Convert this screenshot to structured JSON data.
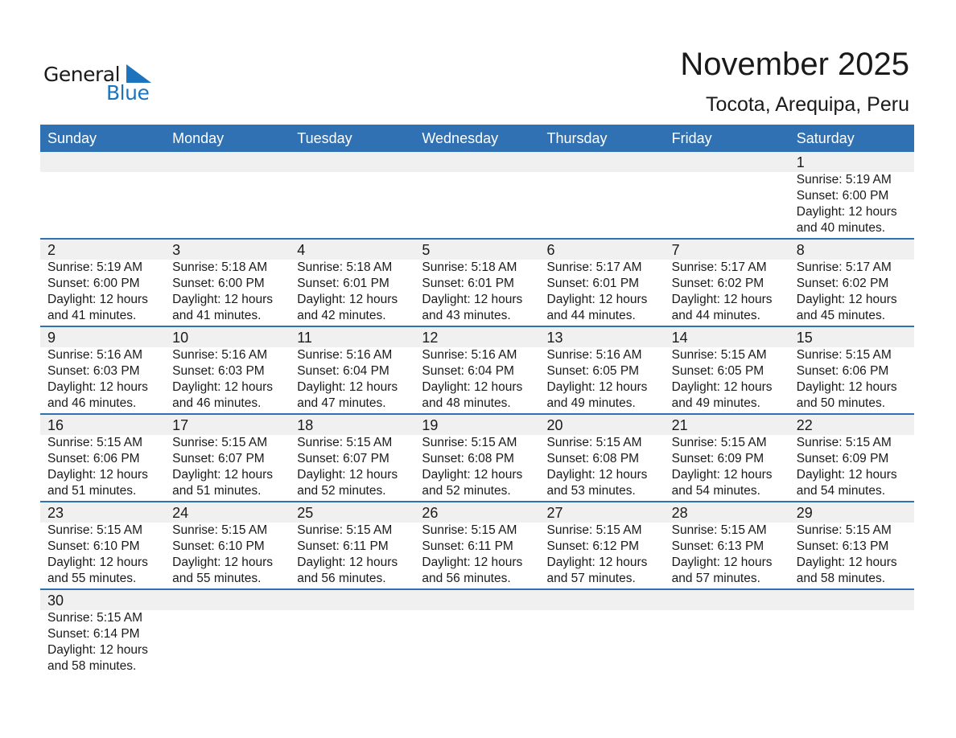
{
  "logo": {
    "line1": "General",
    "line2": "Blue",
    "accent": "#1c75bc"
  },
  "title": "November 2025",
  "subtitle": "Tocota, Arequipa, Peru",
  "header_color": "#2f71b2",
  "weekdays": [
    "Sunday",
    "Monday",
    "Tuesday",
    "Wednesday",
    "Thursday",
    "Friday",
    "Saturday"
  ],
  "weeks": [
    [
      null,
      null,
      null,
      null,
      null,
      null,
      {
        "day": "1",
        "sunrise": "Sunrise: 5:19 AM",
        "sunset": "Sunset: 6:00 PM",
        "daylight": "Daylight: 12 hours",
        "minutes": "and 40 minutes."
      }
    ],
    [
      {
        "day": "2",
        "sunrise": "Sunrise: 5:19 AM",
        "sunset": "Sunset: 6:00 PM",
        "daylight": "Daylight: 12 hours",
        "minutes": "and 41 minutes."
      },
      {
        "day": "3",
        "sunrise": "Sunrise: 5:18 AM",
        "sunset": "Sunset: 6:00 PM",
        "daylight": "Daylight: 12 hours",
        "minutes": "and 41 minutes."
      },
      {
        "day": "4",
        "sunrise": "Sunrise: 5:18 AM",
        "sunset": "Sunset: 6:01 PM",
        "daylight": "Daylight: 12 hours",
        "minutes": "and 42 minutes."
      },
      {
        "day": "5",
        "sunrise": "Sunrise: 5:18 AM",
        "sunset": "Sunset: 6:01 PM",
        "daylight": "Daylight: 12 hours",
        "minutes": "and 43 minutes."
      },
      {
        "day": "6",
        "sunrise": "Sunrise: 5:17 AM",
        "sunset": "Sunset: 6:01 PM",
        "daylight": "Daylight: 12 hours",
        "minutes": "and 44 minutes."
      },
      {
        "day": "7",
        "sunrise": "Sunrise: 5:17 AM",
        "sunset": "Sunset: 6:02 PM",
        "daylight": "Daylight: 12 hours",
        "minutes": "and 44 minutes."
      },
      {
        "day": "8",
        "sunrise": "Sunrise: 5:17 AM",
        "sunset": "Sunset: 6:02 PM",
        "daylight": "Daylight: 12 hours",
        "minutes": "and 45 minutes."
      }
    ],
    [
      {
        "day": "9",
        "sunrise": "Sunrise: 5:16 AM",
        "sunset": "Sunset: 6:03 PM",
        "daylight": "Daylight: 12 hours",
        "minutes": "and 46 minutes."
      },
      {
        "day": "10",
        "sunrise": "Sunrise: 5:16 AM",
        "sunset": "Sunset: 6:03 PM",
        "daylight": "Daylight: 12 hours",
        "minutes": "and 46 minutes."
      },
      {
        "day": "11",
        "sunrise": "Sunrise: 5:16 AM",
        "sunset": "Sunset: 6:04 PM",
        "daylight": "Daylight: 12 hours",
        "minutes": "and 47 minutes."
      },
      {
        "day": "12",
        "sunrise": "Sunrise: 5:16 AM",
        "sunset": "Sunset: 6:04 PM",
        "daylight": "Daylight: 12 hours",
        "minutes": "and 48 minutes."
      },
      {
        "day": "13",
        "sunrise": "Sunrise: 5:16 AM",
        "sunset": "Sunset: 6:05 PM",
        "daylight": "Daylight: 12 hours",
        "minutes": "and 49 minutes."
      },
      {
        "day": "14",
        "sunrise": "Sunrise: 5:15 AM",
        "sunset": "Sunset: 6:05 PM",
        "daylight": "Daylight: 12 hours",
        "minutes": "and 49 minutes."
      },
      {
        "day": "15",
        "sunrise": "Sunrise: 5:15 AM",
        "sunset": "Sunset: 6:06 PM",
        "daylight": "Daylight: 12 hours",
        "minutes": "and 50 minutes."
      }
    ],
    [
      {
        "day": "16",
        "sunrise": "Sunrise: 5:15 AM",
        "sunset": "Sunset: 6:06 PM",
        "daylight": "Daylight: 12 hours",
        "minutes": "and 51 minutes."
      },
      {
        "day": "17",
        "sunrise": "Sunrise: 5:15 AM",
        "sunset": "Sunset: 6:07 PM",
        "daylight": "Daylight: 12 hours",
        "minutes": "and 51 minutes."
      },
      {
        "day": "18",
        "sunrise": "Sunrise: 5:15 AM",
        "sunset": "Sunset: 6:07 PM",
        "daylight": "Daylight: 12 hours",
        "minutes": "and 52 minutes."
      },
      {
        "day": "19",
        "sunrise": "Sunrise: 5:15 AM",
        "sunset": "Sunset: 6:08 PM",
        "daylight": "Daylight: 12 hours",
        "minutes": "and 52 minutes."
      },
      {
        "day": "20",
        "sunrise": "Sunrise: 5:15 AM",
        "sunset": "Sunset: 6:08 PM",
        "daylight": "Daylight: 12 hours",
        "minutes": "and 53 minutes."
      },
      {
        "day": "21",
        "sunrise": "Sunrise: 5:15 AM",
        "sunset": "Sunset: 6:09 PM",
        "daylight": "Daylight: 12 hours",
        "minutes": "and 54 minutes."
      },
      {
        "day": "22",
        "sunrise": "Sunrise: 5:15 AM",
        "sunset": "Sunset: 6:09 PM",
        "daylight": "Daylight: 12 hours",
        "minutes": "and 54 minutes."
      }
    ],
    [
      {
        "day": "23",
        "sunrise": "Sunrise: 5:15 AM",
        "sunset": "Sunset: 6:10 PM",
        "daylight": "Daylight: 12 hours",
        "minutes": "and 55 minutes."
      },
      {
        "day": "24",
        "sunrise": "Sunrise: 5:15 AM",
        "sunset": "Sunset: 6:10 PM",
        "daylight": "Daylight: 12 hours",
        "minutes": "and 55 minutes."
      },
      {
        "day": "25",
        "sunrise": "Sunrise: 5:15 AM",
        "sunset": "Sunset: 6:11 PM",
        "daylight": "Daylight: 12 hours",
        "minutes": "and 56 minutes."
      },
      {
        "day": "26",
        "sunrise": "Sunrise: 5:15 AM",
        "sunset": "Sunset: 6:11 PM",
        "daylight": "Daylight: 12 hours",
        "minutes": "and 56 minutes."
      },
      {
        "day": "27",
        "sunrise": "Sunrise: 5:15 AM",
        "sunset": "Sunset: 6:12 PM",
        "daylight": "Daylight: 12 hours",
        "minutes": "and 57 minutes."
      },
      {
        "day": "28",
        "sunrise": "Sunrise: 5:15 AM",
        "sunset": "Sunset: 6:13 PM",
        "daylight": "Daylight: 12 hours",
        "minutes": "and 57 minutes."
      },
      {
        "day": "29",
        "sunrise": "Sunrise: 5:15 AM",
        "sunset": "Sunset: 6:13 PM",
        "daylight": "Daylight: 12 hours",
        "minutes": "and 58 minutes."
      }
    ],
    [
      {
        "day": "30",
        "sunrise": "Sunrise: 5:15 AM",
        "sunset": "Sunset: 6:14 PM",
        "daylight": "Daylight: 12 hours",
        "minutes": "and 58 minutes."
      },
      null,
      null,
      null,
      null,
      null,
      null
    ]
  ]
}
